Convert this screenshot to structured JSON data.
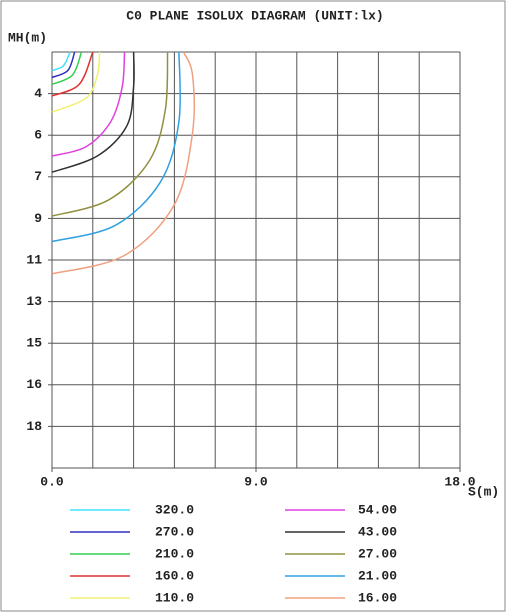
{
  "chart_data": {
    "type": "isolux",
    "title": "C0 PLANE ISOLUX DIAGRAM (UNIT:lx)",
    "y_label": "MH(m)",
    "x_label": "S(m)",
    "xlim": [
      0,
      18
    ],
    "xticks": [
      {
        "value": 0,
        "label": "0.0"
      },
      {
        "value": 9,
        "label": "9.0"
      },
      {
        "value": 18,
        "label": "18.0"
      }
    ],
    "ylim": [
      2,
      20
    ],
    "y_inverted": true,
    "yticks": [
      {
        "value": 3.8,
        "label": "4"
      },
      {
        "value": 5.6,
        "label": "6"
      },
      {
        "value": 7.4,
        "label": "7"
      },
      {
        "value": 9.2,
        "label": "9"
      },
      {
        "value": 11,
        "label": "11"
      },
      {
        "value": 12.8,
        "label": "13"
      },
      {
        "value": 14.6,
        "label": "15"
      },
      {
        "value": 16.4,
        "label": "16"
      },
      {
        "value": 18.2,
        "label": "18"
      }
    ],
    "grid_x_step": 1.8,
    "grid_y_step": 1.8,
    "grid": true,
    "series": [
      {
        "name": "320.0",
        "color": "#40e0ff",
        "x": [
          0,
          0.5,
          0.8
        ],
        "values": [
          2.8,
          2.6,
          2.0
        ]
      },
      {
        "name": "270.0",
        "color": "#3030c0",
        "x": [
          0,
          0.7,
          1.0
        ],
        "values": [
          3.1,
          2.8,
          2.0
        ]
      },
      {
        "name": "210.0",
        "color": "#30d050",
        "x": [
          0,
          0.9,
          1.3
        ],
        "values": [
          3.4,
          3.0,
          2.0
        ]
      },
      {
        "name": "160.0",
        "color": "#e03030",
        "x": [
          0,
          1.2,
          1.8
        ],
        "values": [
          3.9,
          3.4,
          2.0
        ]
      },
      {
        "name": "110.0",
        "color": "#f0f070",
        "x": [
          0,
          1.5,
          2.0,
          2.1
        ],
        "values": [
          4.6,
          4.0,
          3.0,
          2.0
        ]
      },
      {
        "name": "54.00",
        "color": "#e040e0",
        "x": [
          0,
          1.5,
          2.6,
          3.1,
          3.2
        ],
        "values": [
          6.5,
          6.1,
          5.0,
          3.5,
          2.0
        ]
      },
      {
        "name": "43.00",
        "color": "#303030",
        "x": [
          0,
          2.0,
          3.3,
          3.6,
          3.6
        ],
        "values": [
          7.2,
          6.5,
          5.2,
          3.5,
          2.0
        ]
      },
      {
        "name": "27.00",
        "color": "#909040",
        "x": [
          0,
          2.5,
          4.3,
          5.0,
          5.1
        ],
        "values": [
          9.1,
          8.4,
          6.7,
          4.5,
          2.0
        ]
      },
      {
        "name": "21.00",
        "color": "#30a0e0",
        "x": [
          0,
          2.8,
          4.8,
          5.6,
          5.6
        ],
        "values": [
          10.2,
          9.5,
          7.6,
          5.0,
          2.0
        ]
      },
      {
        "name": "16.00",
        "color": "#f0a080",
        "x": [
          0,
          3.2,
          5.4,
          6.2,
          6.2,
          5.8
        ],
        "values": [
          11.6,
          10.8,
          8.6,
          5.5,
          3.0,
          2.0
        ]
      }
    ]
  }
}
